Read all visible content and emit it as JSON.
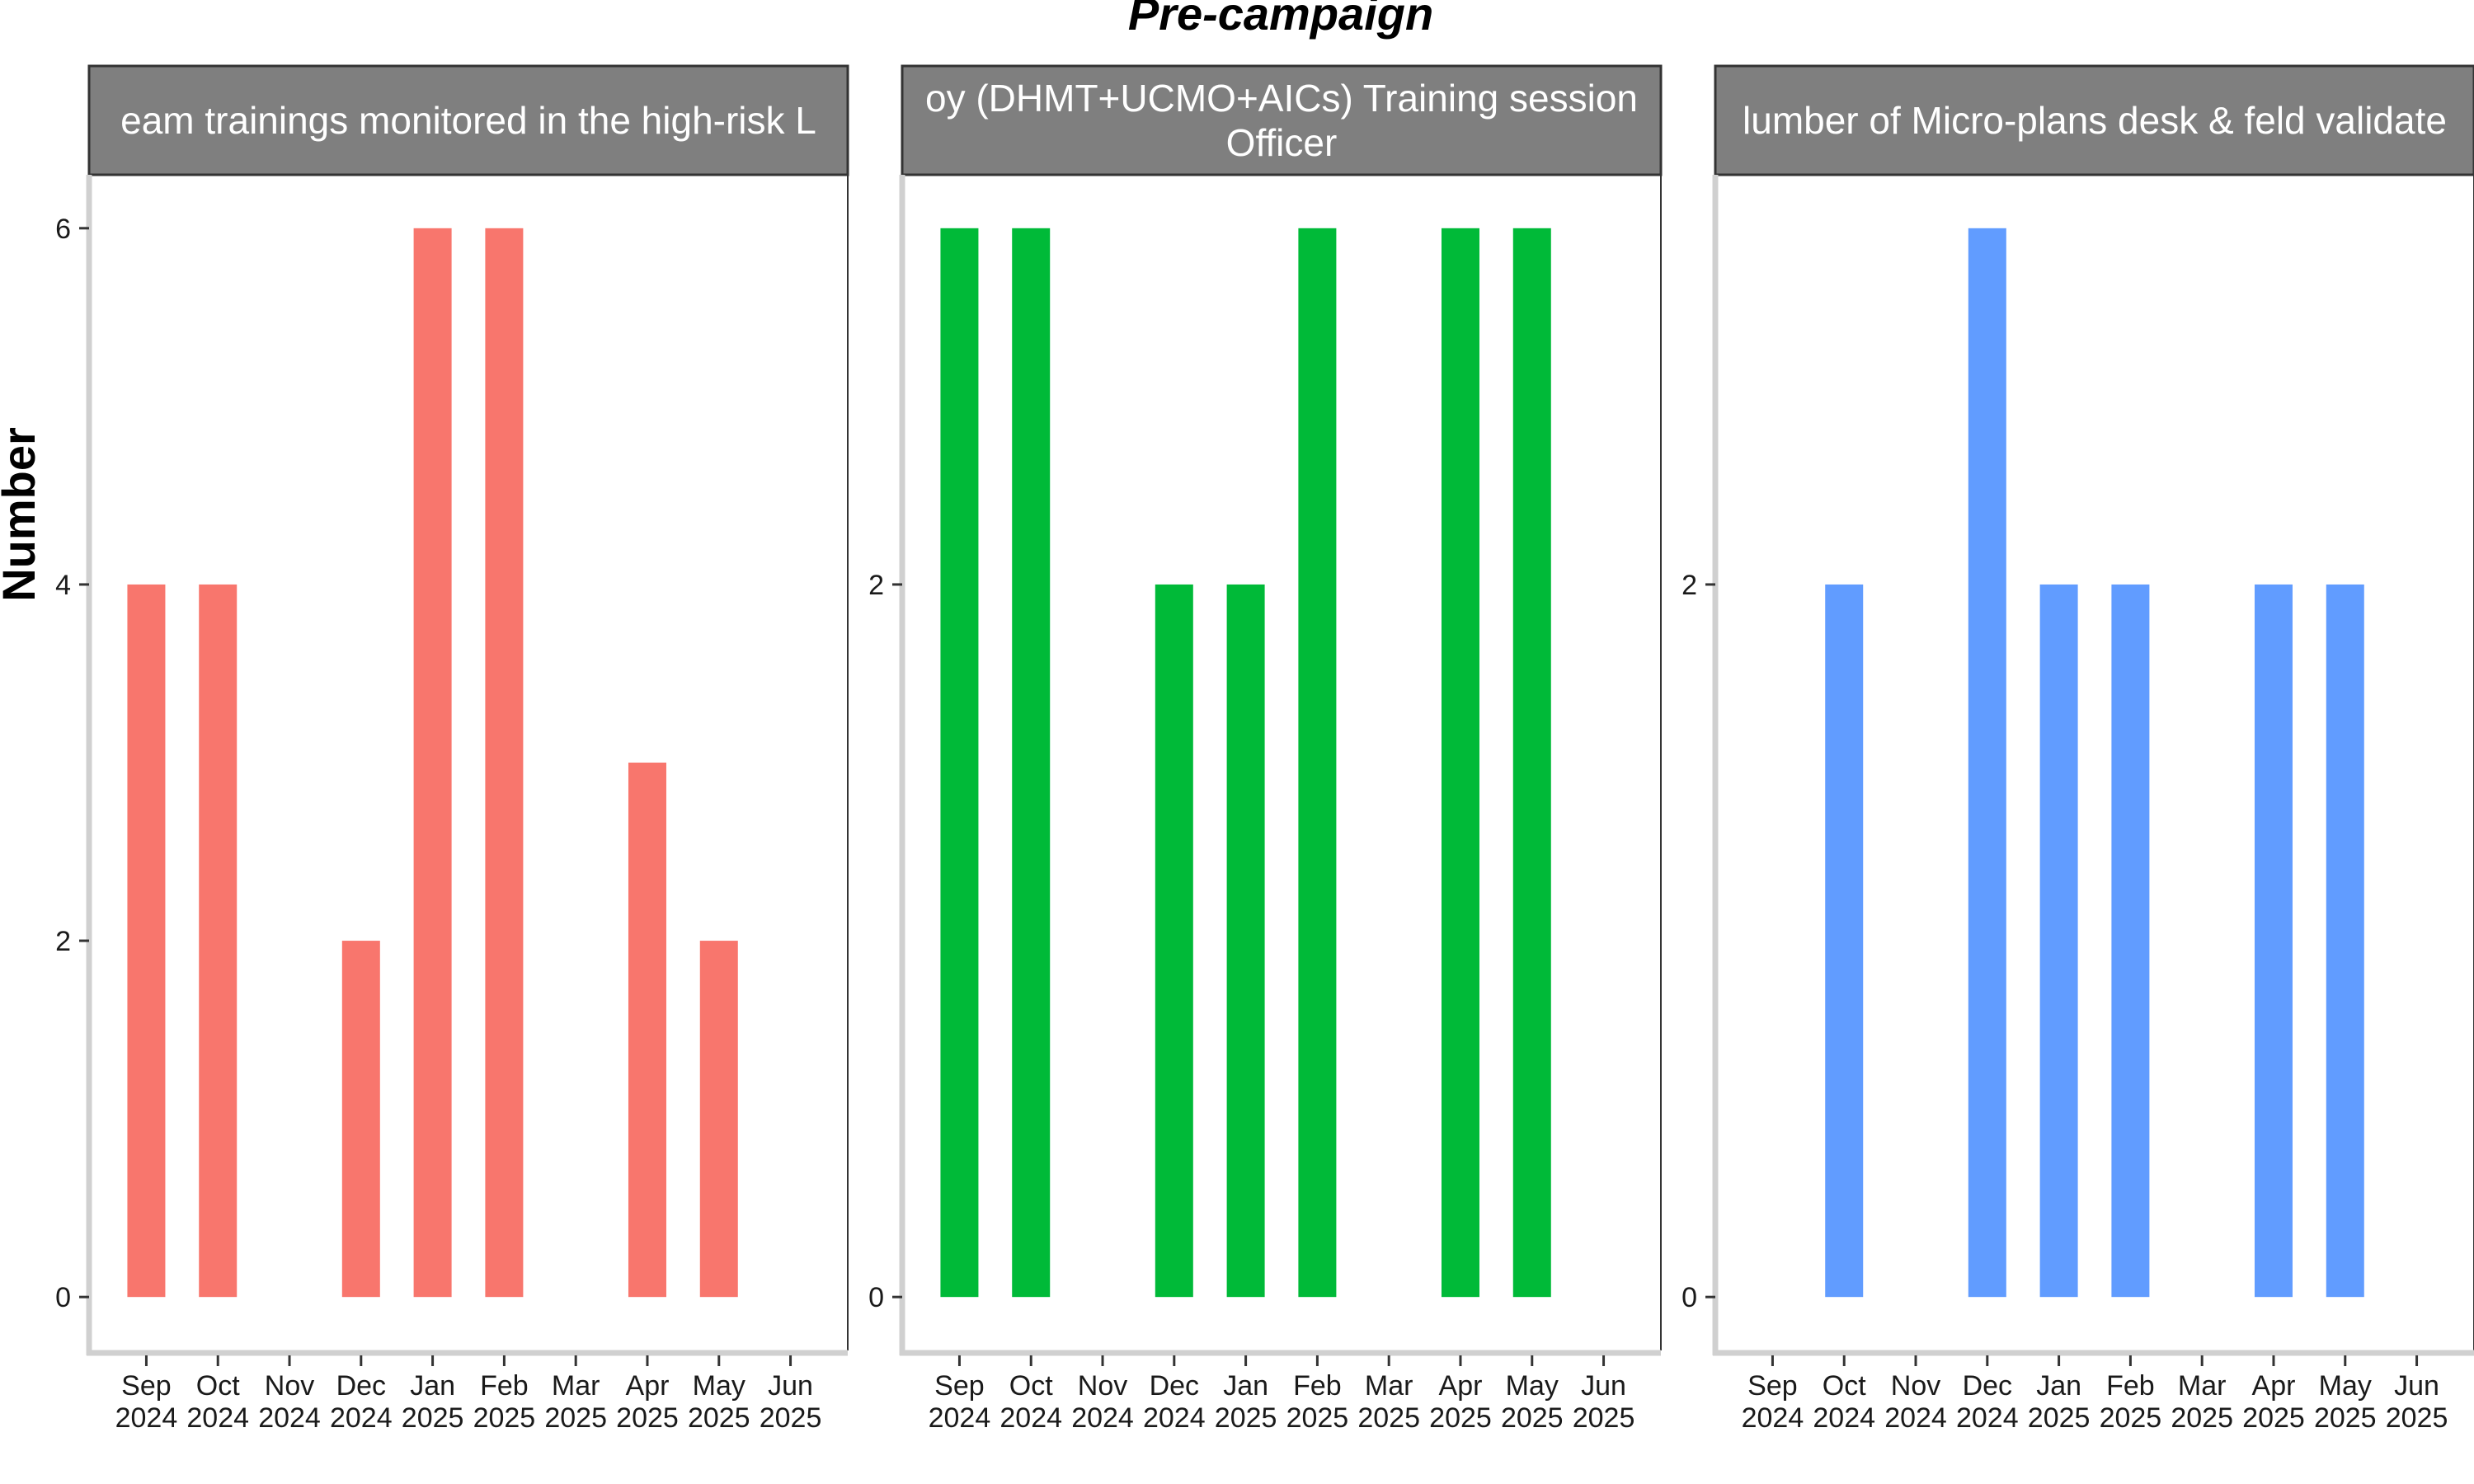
{
  "chart_data": {
    "type": "bar",
    "title": "Pre-campaign",
    "ylabel": "Number",
    "xlabel": "",
    "x_categories": [
      [
        "Sep",
        "2024"
      ],
      [
        "Oct",
        "2024"
      ],
      [
        "Nov",
        "2024"
      ],
      [
        "Dec",
        "2024"
      ],
      [
        "Jan",
        "2025"
      ],
      [
        "Feb",
        "2025"
      ],
      [
        "Mar",
        "2025"
      ],
      [
        "Apr",
        "2025"
      ],
      [
        "May",
        "2025"
      ],
      [
        "Jun",
        "2025"
      ]
    ],
    "grid": false,
    "legend": "none",
    "panels": [
      {
        "strip_lines": [
          "eam trainings monitored in the high-risk L"
        ],
        "color": "#F8766D",
        "ylim": [
          -0.3,
          6.3
        ],
        "y_ticks": [
          0,
          2,
          4,
          6
        ],
        "y_tick_labels": [
          "0",
          "2",
          "4",
          "6"
        ],
        "values": [
          4,
          4,
          null,
          2,
          6,
          6,
          null,
          3,
          2,
          null
        ]
      },
      {
        "strip_lines": [
          "oy (DHMT+UCMO+AICs) Training session",
          "Officer"
        ],
        "color": "#00BA38",
        "ylim": [
          -0.15,
          3.15
        ],
        "y_ticks": [
          0,
          2
        ],
        "y_tick_labels": [
          "0",
          "2"
        ],
        "values": [
          3,
          3,
          null,
          2,
          2,
          3,
          null,
          3,
          3,
          null
        ]
      },
      {
        "strip_lines": [
          "lumber of Micro-plans desk & feld validate"
        ],
        "color": "#619CFF",
        "ylim": [
          -0.15,
          3.15
        ],
        "y_ticks": [
          0,
          2
        ],
        "y_tick_labels": [
          "0",
          "2"
        ],
        "values": [
          null,
          2,
          null,
          3,
          2,
          2,
          null,
          2,
          2,
          null
        ]
      }
    ]
  }
}
